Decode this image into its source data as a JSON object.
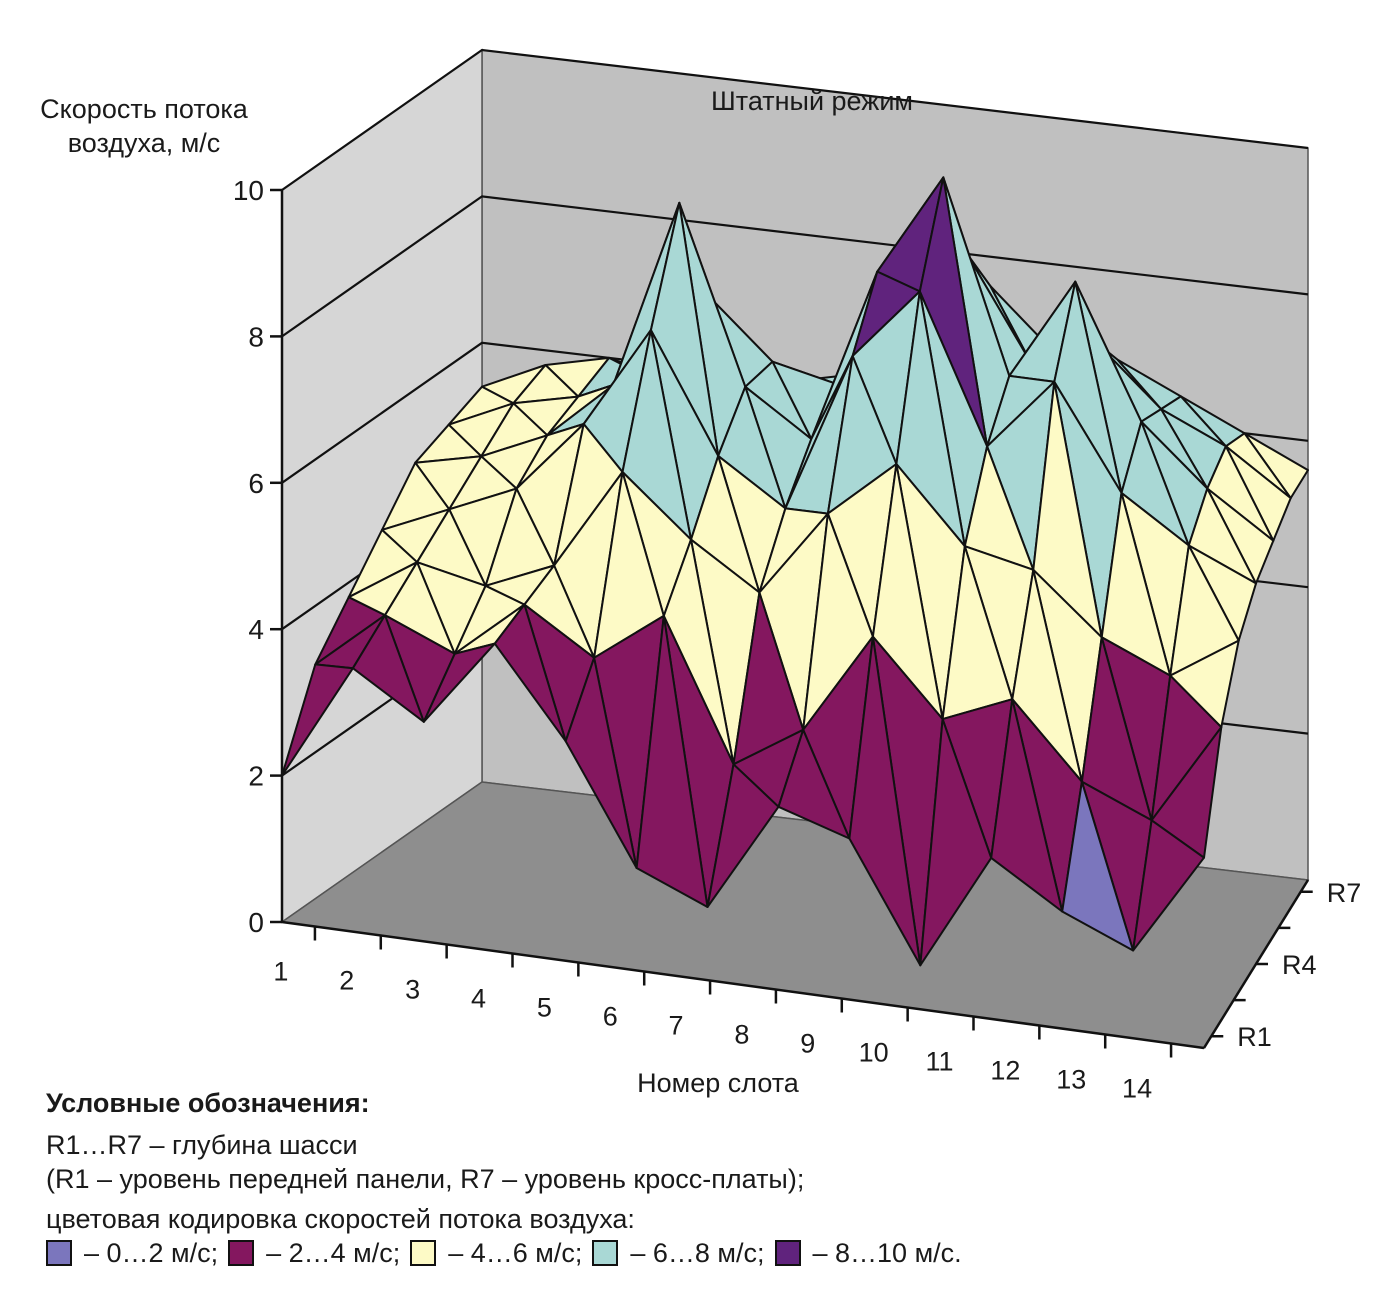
{
  "chart_data": {
    "type": "surface",
    "title": "Штатный режим",
    "ylabel": [
      "Скорость потока",
      "воздуха, м/с"
    ],
    "xlabel": "Номер слота",
    "ylim": [
      0,
      10
    ],
    "yticks": [
      "0",
      "2",
      "4",
      "6",
      "8",
      "10"
    ],
    "x_categories": [
      "1",
      "2",
      "3",
      "4",
      "5",
      "6",
      "7",
      "8",
      "9",
      "10",
      "11",
      "12",
      "13",
      "14"
    ],
    "depth_labels": [
      "R1",
      "R4",
      "R7"
    ],
    "depth_rows": [
      "R1",
      "R2",
      "R3",
      "R4",
      "R5",
      "R6",
      "R7"
    ],
    "bands": [
      {
        "range": "0…2 м/с",
        "color": "#7b76bd"
      },
      {
        "range": "2…4 м/с",
        "color": "#84175f"
      },
      {
        "range": "4…6 м/с",
        "color": "#fdfac6"
      },
      {
        "range": "6…8 м/с",
        "color": "#a9d8d5"
      },
      {
        "range": "8…10 м/с",
        "color": "#60237d"
      }
    ],
    "z": [
      [
        2.0,
        3.6,
        3.0,
        4.2,
        3.0,
        1.4,
        1.0,
        2.5,
        2.2,
        0.6,
        2.2,
        1.6,
        1.2,
        2.6
      ],
      [
        3.2,
        4.0,
        3.6,
        4.4,
        3.8,
        4.5,
        2.6,
        3.2,
        4.6,
        3.6,
        4.0,
        3.0,
        2.6,
        4.0
      ],
      [
        3.8,
        4.4,
        4.2,
        4.6,
        6.0,
        5.2,
        4.6,
        5.8,
        6.6,
        5.6,
        5.4,
        4.6,
        4.2,
        4.8
      ],
      [
        4.4,
        4.8,
        5.2,
        6.2,
        7.6,
        6.0,
        5.4,
        7.6,
        8.6,
        6.6,
        7.6,
        6.2,
        5.6,
        5.2
      ],
      [
        5.0,
        5.2,
        5.6,
        6.4,
        9.0,
        6.6,
        6.0,
        8.4,
        9.8,
        7.2,
        8.6,
        6.8,
        6.0,
        5.4
      ],
      [
        5.2,
        5.6,
        5.8,
        6.2,
        7.4,
        6.6,
        6.4,
        7.6,
        8.4,
        7.0,
        7.4,
        6.6,
        6.2,
        5.6
      ],
      [
        5.4,
        5.8,
        6.0,
        5.8,
        6.4,
        6.0,
        6.2,
        7.0,
        7.6,
        6.8,
        6.8,
        6.4,
        6.0,
        5.6
      ]
    ]
  },
  "legend": {
    "heading": "Условные обозначения:",
    "line1": "R1…R7 – глубина шасси",
    "line2": "(R1 – уровень передней панели, R7 – уровень кросс-платы);",
    "line3": "цветовая кодировка скоростей потока воздуха:",
    "items": [
      {
        "label": "– 0…2 м/с;",
        "color": "#7b76bd"
      },
      {
        "label": "– 2…4 м/с;",
        "color": "#84175f"
      },
      {
        "label": "– 4…6 м/с;",
        "color": "#fdfac6"
      },
      {
        "label": "– 6…8 м/с;",
        "color": "#a9d8d5"
      },
      {
        "label": "– 8…10 м/с.",
        "color": "#60237d"
      }
    ]
  }
}
